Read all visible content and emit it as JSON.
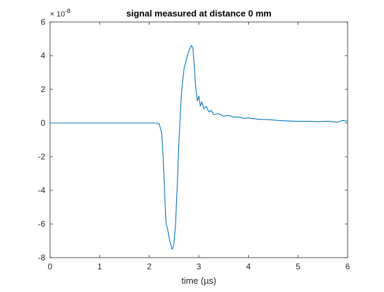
{
  "chart_data": {
    "type": "line",
    "title": "signal measured at distance 0 mm",
    "xlabel": "time (µs)",
    "ylabel": "",
    "xlim": [
      0,
      6
    ],
    "ylim": [
      -8e-08,
      6e-08
    ],
    "xticks": [
      "0",
      "1",
      "2",
      "3",
      "4",
      "5",
      "6"
    ],
    "yticks": [
      "-8",
      "-6",
      "-4",
      "-2",
      "0",
      "2",
      "4",
      "6"
    ],
    "ytick_values": [
      -8,
      -6,
      -4,
      -2,
      0,
      2,
      4,
      6
    ],
    "y_exponent_prefix": "× 10",
    "y_exponent": "-8",
    "grid": false,
    "line_color": "#0072bd",
    "series": [
      {
        "x": [
          0,
          1,
          2,
          2.15,
          2.2,
          2.25,
          2.28,
          2.31,
          2.34,
          2.37,
          2.4,
          2.43,
          2.46,
          2.48,
          2.5,
          2.53,
          2.56,
          2.6,
          2.65,
          2.7,
          2.75,
          2.8,
          2.85,
          2.88,
          2.9,
          2.93,
          2.97,
          3.0,
          3.03,
          3.06,
          3.1,
          3.15,
          3.2,
          3.25,
          3.3,
          3.4,
          3.5,
          3.6,
          3.7,
          3.8,
          3.9,
          4.0,
          4.2,
          4.4,
          4.6,
          4.8,
          5.0,
          5.2,
          5.4,
          5.6,
          5.8,
          5.9,
          6.0
        ],
        "y": [
          0,
          0,
          0,
          0,
          -0.05,
          -0.6,
          -2.0,
          -4.2,
          -6.0,
          -6.3,
          -6.8,
          -7.2,
          -7.5,
          -7.4,
          -7.1,
          -6.0,
          -4.0,
          -1.0,
          1.8,
          3.2,
          3.8,
          4.3,
          4.6,
          4.45,
          3.7,
          2.3,
          1.3,
          1.6,
          1.0,
          1.25,
          0.85,
          1.0,
          0.65,
          0.75,
          0.5,
          0.55,
          0.4,
          0.45,
          0.35,
          0.35,
          0.28,
          0.3,
          0.22,
          0.2,
          0.15,
          0.12,
          0.1,
          0.1,
          0.08,
          0.1,
          0.05,
          0.15,
          0.1
        ]
      }
    ]
  }
}
